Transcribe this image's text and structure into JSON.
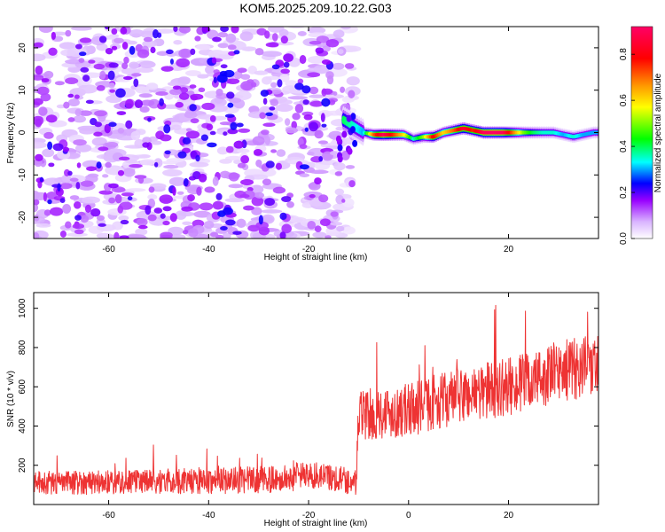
{
  "title": "KOM5.2025.209.10.22.G03",
  "colorbar": {
    "label": "Normalized spectral amplitude",
    "ticks": [
      0.0,
      0.2,
      0.4,
      0.6,
      0.8
    ],
    "tick_labels": [
      "0.0",
      "0.2",
      "0.4",
      "0.6",
      "0.8"
    ],
    "range": [
      0,
      0.92
    ],
    "colors": [
      "#ffffff",
      "#d9b3ff",
      "#9900ff",
      "#0000ff",
      "#00ffff",
      "#00ff00",
      "#ffff00",
      "#ff9900",
      "#ff0000",
      "#ff0066"
    ]
  },
  "chart_data": [
    {
      "type": "heatmap",
      "xlabel": "Height of straight line (km)",
      "ylabel": "Frequency (Hz)",
      "xlim": [
        -75,
        38
      ],
      "ylim": [
        -25,
        25
      ],
      "xticks": [
        -60,
        -40,
        -20,
        0,
        20
      ],
      "xtick_labels": [
        "-60",
        "-40",
        "-20",
        "0",
        "20"
      ],
      "yticks": [
        -20,
        -10,
        0,
        10,
        20
      ],
      "ytick_labels": [
        "-20",
        "-10",
        "0",
        "10",
        "20"
      ],
      "noise_region_x": [
        -75,
        -13
      ],
      "signal_band": {
        "x": [
          -13,
          -11,
          -9,
          -7,
          -5,
          -3,
          -1,
          1,
          3,
          5,
          7,
          9,
          11,
          13,
          15,
          17,
          19,
          21,
          23,
          25,
          27,
          29,
          31,
          33,
          35,
          37
        ],
        "frequency": [
          3,
          1.5,
          0,
          -0.5,
          -0.5,
          -0.5,
          -0.5,
          -1.5,
          -1,
          -1,
          0,
          0.5,
          1,
          0.5,
          0,
          0,
          0,
          0,
          0,
          0,
          0,
          0,
          -0.5,
          -1,
          -0.5,
          0
        ],
        "amplitude": [
          0.4,
          0.35,
          0.3,
          0.7,
          0.9,
          0.75,
          0.6,
          0.35,
          0.5,
          0.8,
          0.6,
          0.7,
          0.85,
          0.75,
          0.9,
          0.92,
          0.9,
          0.7,
          0.5,
          0.4,
          0.35,
          0.35,
          0.3,
          0.35,
          0.3,
          0.3
        ]
      }
    },
    {
      "type": "line",
      "xlabel": "Height of straight line (km)",
      "ylabel": "SNR (10 * v/v)",
      "xlim": [
        -75,
        38
      ],
      "ylim": [
        0,
        1080
      ],
      "xticks": [
        -60,
        -40,
        -20,
        0,
        20
      ],
      "xtick_labels": [
        "-60",
        "-40",
        "-20",
        "0",
        "20"
      ],
      "yticks": [
        200,
        400,
        600,
        800,
        1000
      ],
      "ytick_labels": [
        "200",
        "400",
        "600",
        "800",
        "1000"
      ],
      "color": "#ee3333",
      "trend": {
        "x": [
          -75,
          -60,
          -40,
          -25,
          -20,
          -15,
          -10.5,
          -10,
          -5,
          0,
          5,
          10,
          15,
          20,
          25,
          30,
          35,
          38
        ],
        "y": [
          110,
          115,
          120,
          130,
          150,
          140,
          110,
          450,
          470,
          480,
          520,
          550,
          580,
          600,
          630,
          680,
          700,
          720
        ]
      },
      "noise_amplitude": {
        "x": [
          -75,
          -20,
          -10.5,
          -10,
          38
        ],
        "y": [
          60,
          70,
          70,
          130,
          160
        ]
      }
    }
  ]
}
